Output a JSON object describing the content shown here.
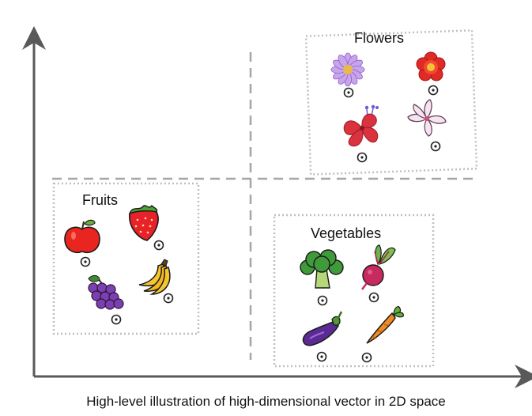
{
  "caption": "High-level illustration  of high-dimensional vector in 2D space",
  "groups": {
    "flowers": {
      "title": "Flowers",
      "items": [
        "purple-daisy-icon",
        "red-flower-icon",
        "hibiscus-icon",
        "lily-icon"
      ]
    },
    "fruits": {
      "title": "Fruits",
      "items": [
        "apple-icon",
        "strawberry-icon",
        "grapes-icon",
        "banana-icon"
      ]
    },
    "vegetables": {
      "title": "Vegetables",
      "items": [
        "broccoli-icon",
        "beetroot-icon",
        "eggplant-icon",
        "carrot-icon"
      ]
    }
  },
  "colors": {
    "axis": "#595959",
    "divider": "#a6a6a6",
    "box_border": "#bfbfbf"
  }
}
